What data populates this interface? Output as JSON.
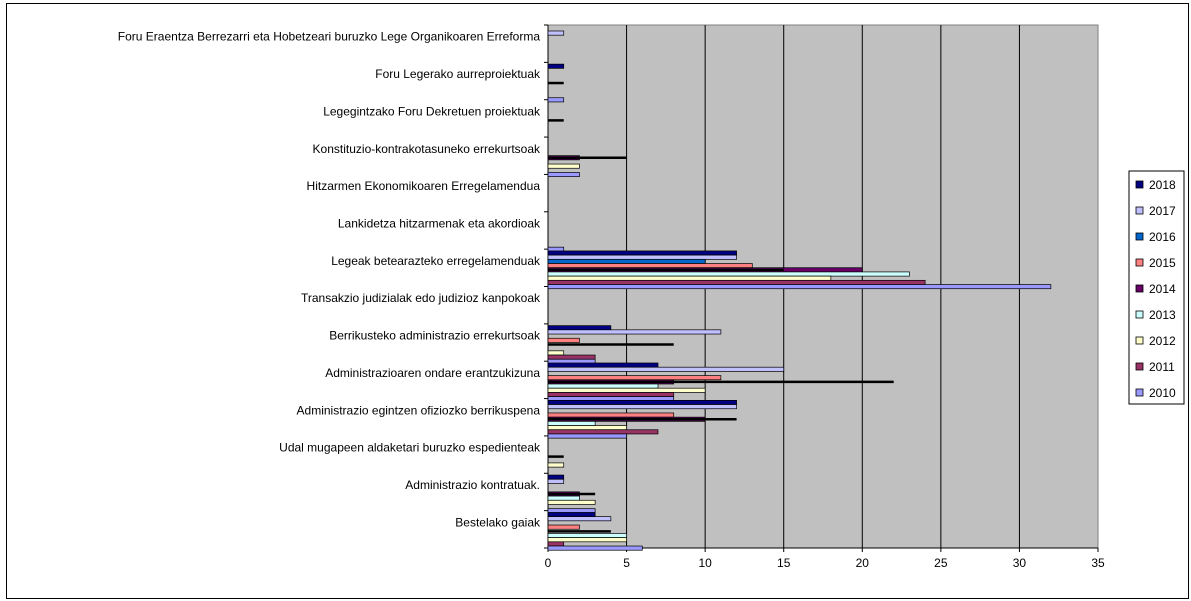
{
  "chart_data": {
    "type": "bar",
    "orientation": "horizontal",
    "title": "",
    "xlabel": "",
    "ylabel": "",
    "xlim": [
      0,
      35
    ],
    "xticks": [
      "0",
      "5",
      "10",
      "15",
      "20",
      "25",
      "30",
      "35"
    ],
    "grid": "vertical",
    "plot_background": "#c0c0c0",
    "legend_position": "right",
    "categories": [
      "Foru Eraentza Berrezarri eta Hobetzeari buruzko Lege Organikoaren Erreforma",
      "Foru Legerako aurreproiektuak",
      "Legegintzako Foru Dekretuen proiektuak",
      "Konstituzio-kontrakotasuneko errekurtsoak",
      "Hitzarmen Ekonomikoaren Erregelamendua",
      "Lankidetza hitzarmenak eta akordioak",
      "Legeak betearazteko erregelamenduak",
      "Transakzio judizialak edo judizioz kanpokoak",
      "Berrikusteko administrazio errekurtsoak",
      "Administrazioaren ondare erantzukizuna",
      "Administrazio egintzen ofiziozko berrikuspena",
      "Udal mugapeen aldaketari buruzko espedienteak",
      "Administrazio kontratuak.",
      "Bestelako gaiak"
    ],
    "series": [
      {
        "name": "2018",
        "color": "#000080",
        "values": [
          0,
          1,
          0,
          0,
          0,
          0,
          12,
          0,
          4,
          7,
          12,
          0,
          1,
          3
        ]
      },
      {
        "name": "2017",
        "color": "#c0c0ff",
        "values": [
          1,
          0,
          0,
          0,
          0,
          0,
          12,
          0,
          11,
          15,
          12,
          0,
          1,
          4
        ]
      },
      {
        "name": "2016",
        "color": "#0066cc",
        "values": [
          0,
          0,
          0,
          0,
          0,
          0,
          10,
          0,
          0,
          0,
          0,
          0,
          0,
          0
        ]
      },
      {
        "name": "2015",
        "color": "#ff8080",
        "values": [
          0,
          0,
          0,
          0,
          0,
          0,
          13,
          0,
          2,
          11,
          8,
          0,
          0,
          2
        ]
      },
      {
        "name": "2014",
        "color": "#660066",
        "values": [
          0,
          0,
          0,
          2,
          0,
          0,
          20,
          0,
          0,
          8,
          10,
          0,
          2,
          0
        ]
      },
      {
        "name": "2013",
        "color": "#ccffff",
        "values": [
          0,
          0,
          0,
          0,
          0,
          0,
          23,
          0,
          0,
          7,
          3,
          0,
          2,
          5
        ]
      },
      {
        "name": "2012",
        "color": "#ffffcc",
        "values": [
          0,
          0,
          0,
          2,
          0,
          0,
          18,
          0,
          1,
          10,
          5,
          1,
          3,
          5
        ]
      },
      {
        "name": "2011",
        "color": "#993366",
        "values": [
          0,
          0,
          0,
          0,
          0,
          0,
          24,
          0,
          3,
          8,
          7,
          0,
          0,
          1
        ]
      },
      {
        "name": "2010",
        "color": "#9999ff",
        "values": [
          0,
          1,
          0,
          2,
          0,
          1,
          32,
          0,
          3,
          8,
          5,
          0,
          3,
          6
        ]
      }
    ],
    "lines": [
      {
        "values": [
          0,
          1,
          1,
          5,
          0,
          0,
          15,
          0,
          8,
          22,
          12,
          1,
          3,
          4
        ]
      }
    ]
  }
}
